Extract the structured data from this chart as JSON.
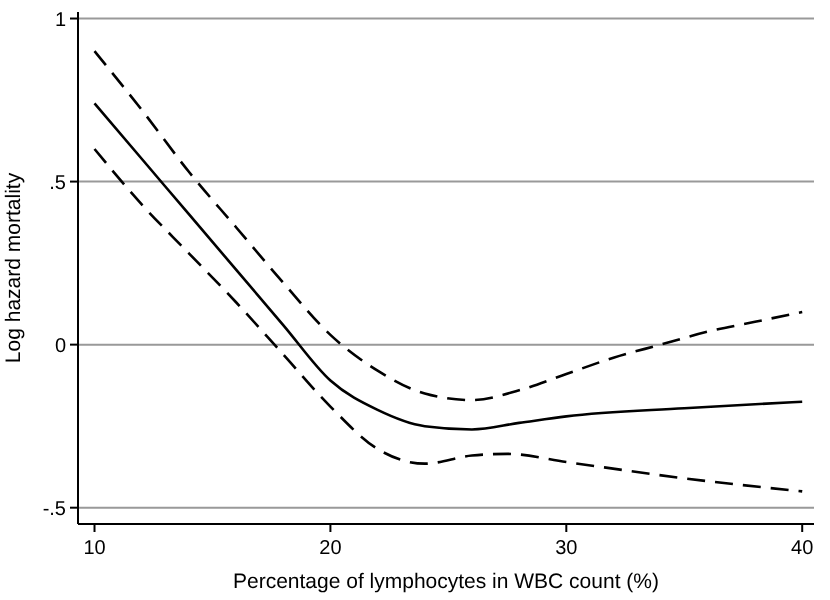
{
  "chart_data": {
    "type": "line",
    "xlabel": "Percentage of lymphocytes in WBC count (%)",
    "ylabel": "Log hazard mortality",
    "xlim": [
      9.3,
      40.5
    ],
    "xticks": [
      10,
      20,
      30,
      40
    ],
    "ylim": [
      -0.55,
      1.02
    ],
    "yticks": [
      {
        "value": -0.5,
        "label": "-.5"
      },
      0,
      {
        "value": 0.5,
        "label": ".5"
      },
      1
    ],
    "grid": "y",
    "series": [
      {
        "color": "#000000",
        "line_style": "dashed",
        "x": [
          10,
          12,
          14,
          16,
          18,
          20,
          22,
          24,
          26,
          28,
          30,
          32,
          34,
          36,
          38,
          40
        ],
        "values": [
          0.9,
          0.72,
          0.53,
          0.36,
          0.19,
          0.03,
          -0.08,
          -0.15,
          -0.17,
          -0.14,
          -0.09,
          -0.04,
          0.0,
          0.04,
          0.07,
          0.1
        ]
      },
      {
        "color": "#000000",
        "line_style": "solid",
        "x": [
          10,
          12,
          14,
          16,
          18,
          20,
          22,
          24,
          26,
          28,
          30,
          35,
          40
        ],
        "values": [
          0.74,
          0.57,
          0.4,
          0.23,
          0.06,
          -0.11,
          -0.2,
          -0.25,
          -0.26,
          -0.24,
          -0.22,
          -0.195,
          -0.175
        ]
      },
      {
        "color": "#000000",
        "line_style": "dashed",
        "x": [
          10,
          12,
          14,
          16,
          18,
          20,
          22,
          24,
          26,
          27.5,
          30,
          35,
          40
        ],
        "values": [
          0.6,
          0.43,
          0.28,
          0.13,
          -0.03,
          -0.19,
          -0.32,
          -0.365,
          -0.34,
          -0.335,
          -0.36,
          -0.41,
          -0.45
        ]
      }
    ]
  }
}
